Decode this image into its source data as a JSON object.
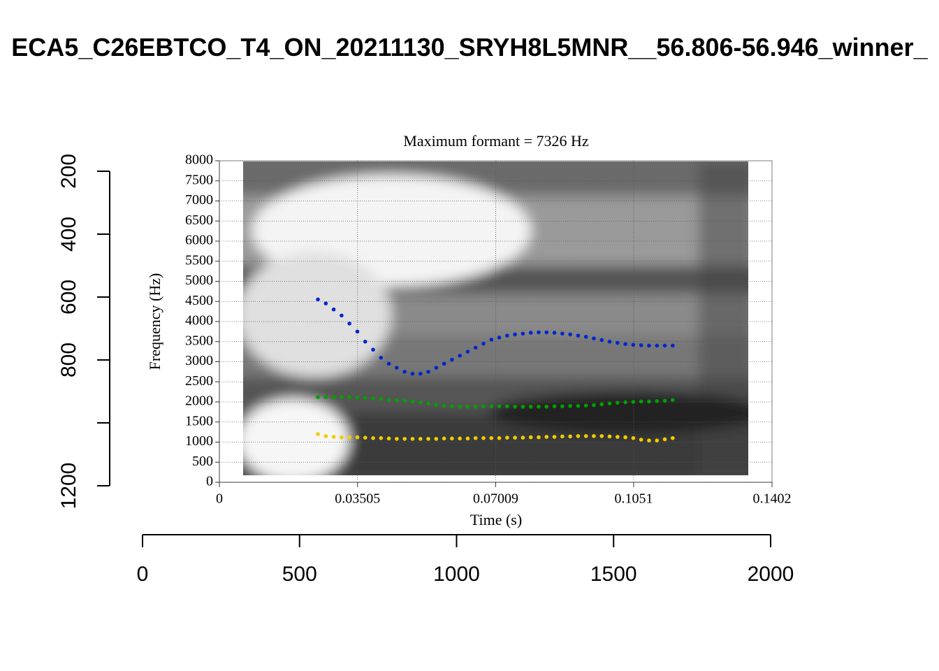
{
  "chart_data": [
    {
      "type": "axes",
      "title": "ECA5_C26EBTCO_T4_ON_20211130_SRYH8L5MNR__56.806-56.946_winner_",
      "xlim": [
        0,
        2000
      ],
      "xticks": [
        0,
        500,
        1000,
        1500,
        2000
      ],
      "ylim": [
        1200,
        200
      ],
      "yticks": [
        200,
        400,
        600,
        800,
        {
          "value": 1000,
          "label": null
        },
        1200
      ]
    },
    {
      "type": "scatter",
      "title": "Maximum formant = 7326 Hz",
      "x_label": "Time (s)",
      "y_label": "Frequency (Hz)",
      "xlim": [
        0,
        0.1402
      ],
      "xticks": [
        0,
        0.03505,
        0.07009,
        0.1051,
        0.1402
      ],
      "ylim": [
        0,
        8000
      ],
      "yticks": [
        0,
        500,
        1000,
        1500,
        2000,
        2500,
        3000,
        3500,
        4000,
        4500,
        5000,
        5500,
        6000,
        6500,
        7000,
        7500,
        8000
      ],
      "grid": true,
      "x": [
        0.025,
        0.027,
        0.029,
        0.031,
        0.033,
        0.035,
        0.037,
        0.039,
        0.041,
        0.043,
        0.045,
        0.047,
        0.049,
        0.051,
        0.053,
        0.055,
        0.057,
        0.059,
        0.061,
        0.063,
        0.065,
        0.067,
        0.069,
        0.071,
        0.073,
        0.075,
        0.077,
        0.079,
        0.081,
        0.083,
        0.085,
        0.087,
        0.089,
        0.091,
        0.093,
        0.095,
        0.097,
        0.099,
        0.101,
        0.103,
        0.105,
        0.107,
        0.109,
        0.111,
        0.113,
        0.115
      ],
      "series": [
        {
          "color": "#f2cc00",
          "values": [
            1200,
            1150,
            1130,
            1120,
            1120,
            1120,
            1110,
            1100,
            1100,
            1090,
            1080,
            1080,
            1080,
            1080,
            1080,
            1080,
            1090,
            1090,
            1090,
            1090,
            1100,
            1100,
            1100,
            1100,
            1110,
            1110,
            1110,
            1120,
            1120,
            1130,
            1130,
            1140,
            1140,
            1150,
            1150,
            1150,
            1150,
            1140,
            1130,
            1120,
            1100,
            1060,
            1040,
            1040,
            1070,
            1100
          ]
        },
        {
          "color": "#00a000",
          "values": [
            2120,
            2120,
            2120,
            2120,
            2120,
            2110,
            2100,
            2090,
            2070,
            2050,
            2040,
            2030,
            2010,
            1990,
            1960,
            1930,
            1900,
            1890,
            1880,
            1880,
            1880,
            1890,
            1890,
            1890,
            1890,
            1880,
            1880,
            1880,
            1880,
            1880,
            1890,
            1890,
            1900,
            1900,
            1910,
            1920,
            1940,
            1960,
            1980,
            1990,
            2000,
            2010,
            2010,
            2020,
            2030,
            2050
          ]
        },
        {
          "color": "#0026d0",
          "values": [
            4550,
            4450,
            4300,
            4150,
            3950,
            3750,
            3500,
            3300,
            3100,
            2950,
            2850,
            2750,
            2700,
            2700,
            2750,
            2850,
            2950,
            3050,
            3150,
            3250,
            3350,
            3450,
            3550,
            3600,
            3650,
            3680,
            3700,
            3720,
            3730,
            3730,
            3720,
            3700,
            3680,
            3650,
            3620,
            3580,
            3540,
            3500,
            3470,
            3440,
            3420,
            3410,
            3400,
            3400,
            3400,
            3400
          ]
        }
      ]
    }
  ]
}
